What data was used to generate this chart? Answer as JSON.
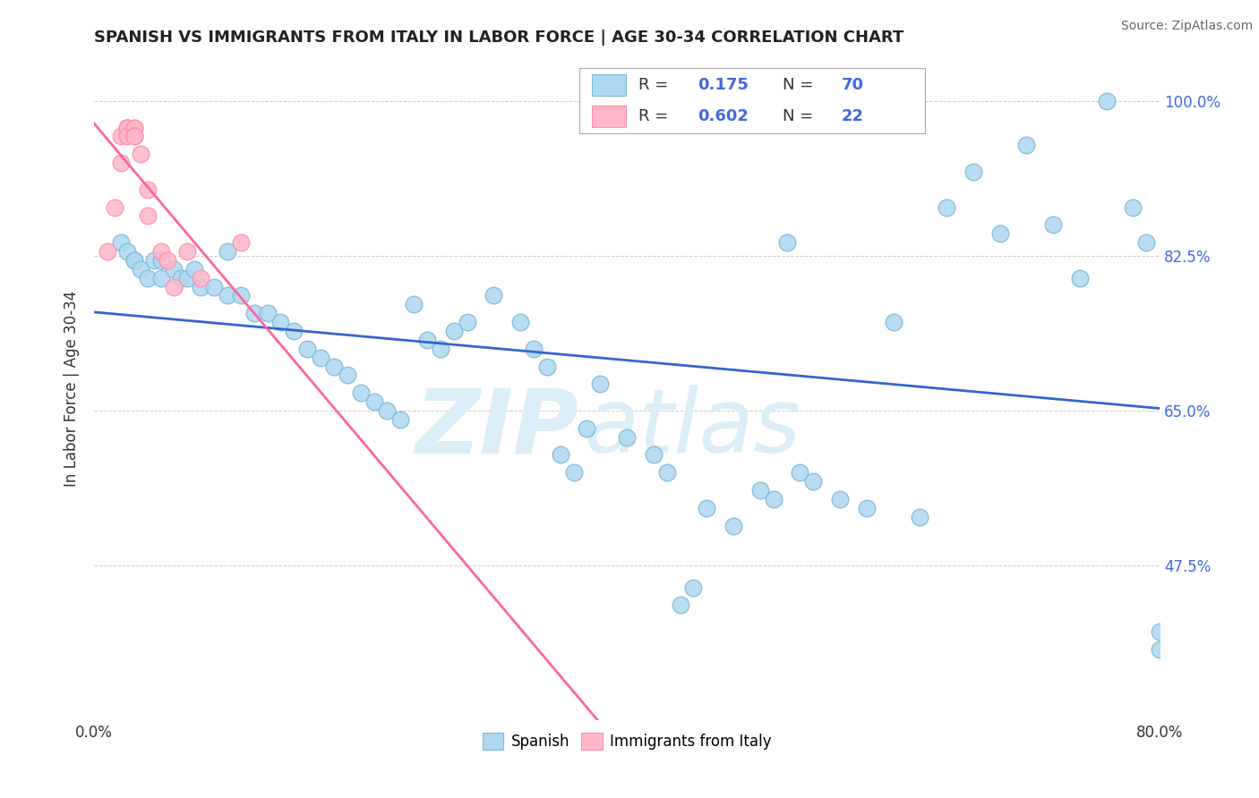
{
  "title": "SPANISH VS IMMIGRANTS FROM ITALY IN LABOR FORCE | AGE 30-34 CORRELATION CHART",
  "source": "Source: ZipAtlas.com",
  "ylabel": "In Labor Force | Age 30-34",
  "ytick_labels": [
    "100.0%",
    "82.5%",
    "65.0%",
    "47.5%"
  ],
  "ytick_values": [
    1.0,
    0.825,
    0.65,
    0.475
  ],
  "xmin": 0.0,
  "xmax": 0.8,
  "ymin": 0.3,
  "ymax": 1.05,
  "blue_scatter_x": [
    0.02,
    0.025,
    0.03,
    0.03,
    0.035,
    0.04,
    0.045,
    0.05,
    0.05,
    0.06,
    0.065,
    0.07,
    0.075,
    0.08,
    0.09,
    0.1,
    0.1,
    0.11,
    0.12,
    0.13,
    0.14,
    0.15,
    0.16,
    0.17,
    0.18,
    0.19,
    0.2,
    0.21,
    0.22,
    0.23,
    0.24,
    0.25,
    0.26,
    0.27,
    0.28,
    0.3,
    0.32,
    0.33,
    0.34,
    0.35,
    0.36,
    0.37,
    0.38,
    0.4,
    0.42,
    0.43,
    0.44,
    0.45,
    0.46,
    0.48,
    0.5,
    0.51,
    0.52,
    0.53,
    0.54,
    0.56,
    0.58,
    0.6,
    0.62,
    0.64,
    0.66,
    0.68,
    0.7,
    0.72,
    0.74,
    0.76,
    0.78,
    0.79,
    0.8,
    0.8
  ],
  "blue_scatter_y": [
    0.84,
    0.83,
    0.82,
    0.82,
    0.81,
    0.8,
    0.82,
    0.8,
    0.82,
    0.81,
    0.8,
    0.8,
    0.81,
    0.79,
    0.79,
    0.83,
    0.78,
    0.78,
    0.76,
    0.76,
    0.75,
    0.74,
    0.72,
    0.71,
    0.7,
    0.69,
    0.67,
    0.66,
    0.65,
    0.64,
    0.77,
    0.73,
    0.72,
    0.74,
    0.75,
    0.78,
    0.75,
    0.72,
    0.7,
    0.6,
    0.58,
    0.63,
    0.68,
    0.62,
    0.6,
    0.58,
    0.43,
    0.45,
    0.54,
    0.52,
    0.56,
    0.55,
    0.84,
    0.58,
    0.57,
    0.55,
    0.54,
    0.75,
    0.53,
    0.88,
    0.92,
    0.85,
    0.95,
    0.86,
    0.8,
    1.0,
    0.88,
    0.84,
    0.38,
    0.4
  ],
  "pink_scatter_x": [
    0.01,
    0.015,
    0.02,
    0.02,
    0.025,
    0.025,
    0.025,
    0.025,
    0.025,
    0.03,
    0.03,
    0.03,
    0.03,
    0.035,
    0.04,
    0.04,
    0.05,
    0.055,
    0.06,
    0.07,
    0.08,
    0.11
  ],
  "pink_scatter_y": [
    0.83,
    0.88,
    0.93,
    0.96,
    0.97,
    0.97,
    0.97,
    0.97,
    0.96,
    0.97,
    0.97,
    0.96,
    0.96,
    0.94,
    0.9,
    0.87,
    0.83,
    0.82,
    0.79,
    0.83,
    0.8,
    0.84
  ],
  "blue_color": "#ADD8F0",
  "pink_color": "#FFB6C8",
  "blue_edge_color": "#7EB8D8",
  "pink_edge_color": "#FF8FA8",
  "blue_line_color": "#3366CC",
  "pink_line_color": "#FF6699",
  "watermark_zip": "ZIP",
  "watermark_atlas": "atlas",
  "watermark_color": "#DCEEF8",
  "grid_color": "#CCCCCC",
  "bg_color": "#FFFFFF",
  "ytick_color": "#4169E1",
  "xtick_color": "#333333",
  "legend_blue_r": "0.175",
  "legend_blue_n": "70",
  "legend_pink_r": "0.602",
  "legend_pink_n": "22"
}
